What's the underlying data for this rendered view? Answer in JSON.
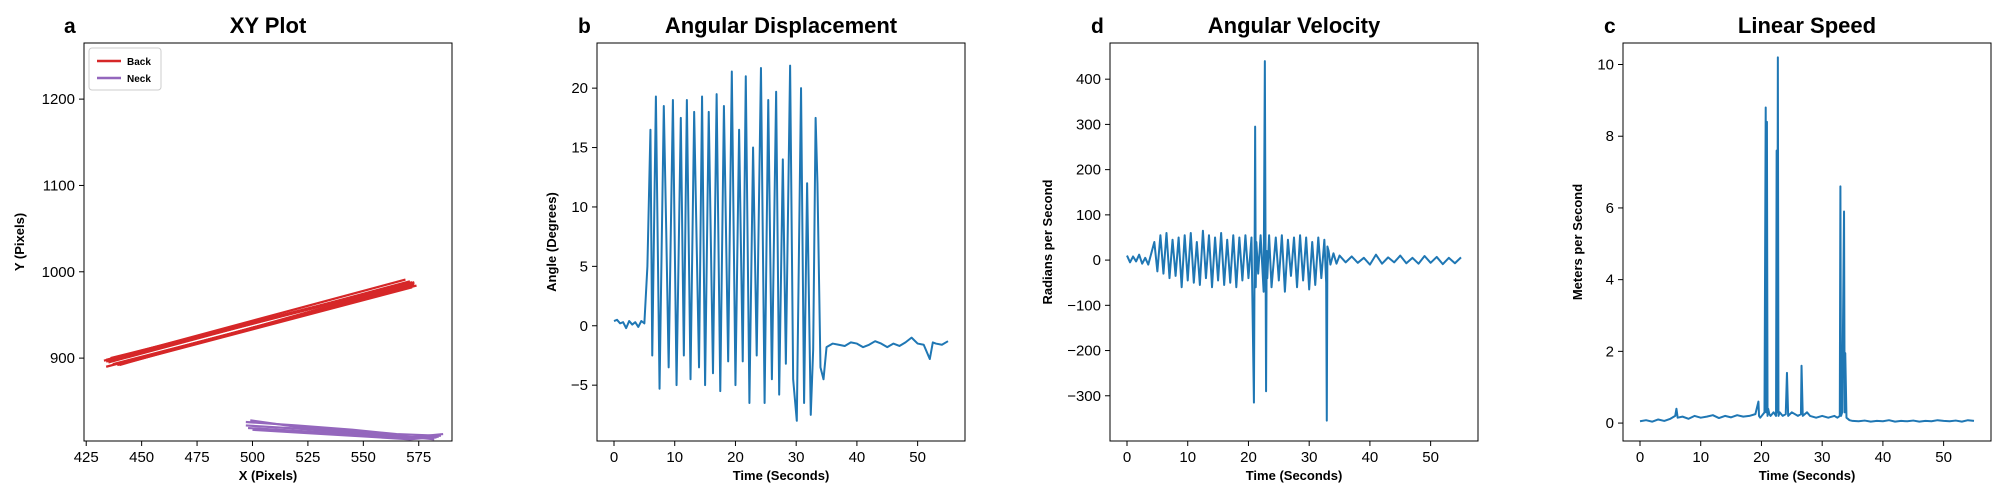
{
  "colors": {
    "blue": "#1f77b4",
    "red": "#d62728",
    "purple": "#9467bd",
    "axis": "#000000",
    "legend_border": "#cccccc"
  },
  "chart_data": [
    {
      "type": "line",
      "letter": "a",
      "title": "XY Plot",
      "xlabel": "X (Pixels)",
      "ylabel": "Y (Pixels)",
      "xlim": [
        424,
        590
      ],
      "ylim": [
        804,
        1265
      ],
      "xticks": [
        425,
        450,
        475,
        500,
        525,
        550,
        575
      ],
      "yticks": [
        900,
        1000,
        1100,
        1200
      ],
      "legend_position": "top-left",
      "series": [
        {
          "name": "Back",
          "color": "#d62728",
          "lines": [
            {
              "x": [
                434,
                573
              ],
              "y": [
                898,
                987
              ]
            },
            {
              "x": [
                434,
                573
              ],
              "y": [
                890,
                985
              ]
            },
            {
              "x": [
                435,
                571
              ],
              "y": [
                895,
                989
              ]
            },
            {
              "x": [
                438,
                570
              ],
              "y": [
                893,
                983
              ]
            },
            {
              "x": [
                436,
                572
              ],
              "y": [
                900,
                988
              ]
            },
            {
              "x": [
                437,
                574
              ],
              "y": [
                893,
                984
              ]
            },
            {
              "x": [
                433,
                569
              ],
              "y": [
                897,
                991
              ]
            },
            {
              "x": [
                439,
                572
              ],
              "y": [
                892,
                982
              ]
            },
            {
              "x": [
                434,
                570
              ],
              "y": [
                896,
                986
              ]
            },
            {
              "x": [
                440,
                573
              ],
              "y": [
                892,
                988
              ]
            }
          ]
        },
        {
          "name": "Neck",
          "color": "#9467bd",
          "lines": [
            {
              "x": [
                497,
                520,
                545,
                565,
                585
              ],
              "y": [
                826,
                822,
                817,
                812,
                810
              ]
            },
            {
              "x": [
                497,
                522,
                548,
                567,
                583
              ],
              "y": [
                822,
                818,
                813,
                809,
                808
              ]
            },
            {
              "x": [
                498,
                525,
                550,
                570,
                586
              ],
              "y": [
                819,
                815,
                811,
                808,
                812
              ]
            },
            {
              "x": [
                499,
                521,
                546,
                566,
                582
              ],
              "y": [
                828,
                820,
                815,
                810,
                806
              ]
            },
            {
              "x": [
                500,
                526,
                552,
                571,
                584
              ],
              "y": [
                817,
                813,
                809,
                806,
                809
              ]
            }
          ]
        }
      ]
    },
    {
      "type": "line",
      "letter": "b",
      "title": "Angular Displacement",
      "xlabel": "Time (Seconds)",
      "ylabel": "Angle (Degrees)",
      "xlim": [
        -2.8,
        57.8
      ],
      "ylim": [
        -9.7,
        23.8
      ],
      "xticks": [
        0,
        10,
        20,
        30,
        40,
        50
      ],
      "yticks": [
        -5,
        0,
        5,
        10,
        15,
        20
      ],
      "series": [
        {
          "color": "#1f77b4",
          "x": [
            0,
            0.5,
            1,
            1.5,
            2,
            2.5,
            3,
            3.5,
            4,
            4.5,
            5,
            5.5,
            6,
            6.3,
            6.9,
            7.5,
            8.2,
            8.6,
            9.0,
            9.7,
            10.3,
            11.0,
            11.5,
            12.0,
            12.6,
            13.2,
            14.0,
            14.5,
            15.0,
            15.6,
            16.3,
            16.9,
            17.5,
            18.1,
            18.8,
            19.4,
            20.0,
            20.6,
            21.2,
            21.7,
            22.3,
            22.9,
            23.5,
            24.2,
            24.8,
            25.4,
            26.0,
            26.7,
            27.2,
            27.8,
            28.3,
            29.0,
            29.5,
            30.1,
            30.8,
            31.3,
            31.8,
            32.4,
            32.8,
            33.2,
            33.5,
            34.0,
            34.5,
            35.0,
            36,
            37,
            38,
            39,
            40,
            41,
            42,
            43,
            44,
            45,
            46,
            47,
            48,
            49,
            50,
            51,
            52,
            52.5,
            53,
            54,
            55
          ],
          "y": [
            0.4,
            0.5,
            0.2,
            0.3,
            -0.2,
            0.4,
            0.1,
            0.3,
            -0.1,
            0.4,
            0.2,
            5.0,
            16.5,
            -2.5,
            19.3,
            -5.3,
            18.5,
            8.0,
            -3.5,
            19.0,
            -5.0,
            17.5,
            -2.5,
            19.0,
            -4.5,
            18.0,
            -3.5,
            19.3,
            -5.0,
            18.0,
            -4.0,
            19.5,
            -5.5,
            18.5,
            -3.0,
            21.4,
            -5.0,
            16.5,
            -3.0,
            21.0,
            -6.5,
            15.0,
            -2.5,
            21.7,
            -6.5,
            19.0,
            -4.5,
            19.7,
            -5.8,
            14.0,
            -3.2,
            21.9,
            -4.5,
            -8.0,
            20.0,
            -6.5,
            12.0,
            -7.5,
            -2.0,
            17.5,
            12.0,
            -3.5,
            -4.5,
            -1.8,
            -1.5,
            -1.6,
            -1.7,
            -1.4,
            -1.5,
            -1.8,
            -1.6,
            -1.3,
            -1.5,
            -1.8,
            -1.5,
            -1.7,
            -1.4,
            -1.0,
            -1.5,
            -1.6,
            -2.8,
            -1.4,
            -1.5,
            -1.6,
            -1.3
          ]
        }
      ]
    },
    {
      "type": "line",
      "letter": "d",
      "title": "Angular Velocity",
      "xlabel": "Time (Seconds)",
      "ylabel": "Radians per Second",
      "xlim": [
        -2.8,
        57.8
      ],
      "ylim": [
        -400,
        480
      ],
      "xticks": [
        0,
        10,
        20,
        30,
        40,
        50
      ],
      "yticks": [
        -300,
        -200,
        -100,
        0,
        100,
        200,
        300,
        400
      ],
      "series": [
        {
          "color": "#1f77b4",
          "x": [
            0,
            0.5,
            1,
            1.5,
            2,
            2.5,
            3,
            3.5,
            4,
            4.5,
            5,
            5.5,
            6,
            6.5,
            7,
            7.5,
            8,
            8.5,
            9,
            9.5,
            10,
            10.5,
            11,
            11.5,
            12,
            12.5,
            13,
            13.5,
            14,
            14.5,
            15,
            15.5,
            16,
            16.5,
            17,
            17.5,
            18,
            18.5,
            19,
            19.5,
            20,
            20.5,
            20.9,
            21.0,
            21.1,
            21.2,
            21.3,
            21.6,
            22,
            22.5,
            22.7,
            22.9,
            23.0,
            23.1,
            23.4,
            23.8,
            24.5,
            25,
            25.5,
            26,
            26.5,
            27,
            27.5,
            28,
            28.5,
            29,
            29.5,
            30,
            30.5,
            31,
            31.5,
            32,
            32.5,
            32.8,
            32.9,
            33.0,
            33.2,
            33.5,
            34,
            34.5,
            35,
            36,
            37,
            38,
            39,
            40,
            41,
            42,
            43,
            44,
            45,
            46,
            47,
            48,
            49,
            50,
            51,
            52,
            53,
            54,
            55
          ],
          "y": [
            10,
            -5,
            8,
            -3,
            12,
            -8,
            5,
            -10,
            15,
            40,
            -25,
            55,
            -30,
            60,
            -40,
            45,
            -35,
            50,
            -60,
            55,
            -45,
            60,
            -50,
            40,
            -55,
            65,
            -40,
            55,
            -60,
            50,
            -45,
            60,
            -55,
            45,
            -50,
            55,
            -60,
            50,
            -45,
            55,
            -40,
            50,
            -315,
            -20,
            295,
            -60,
            40,
            -30,
            55,
            -70,
            440,
            -290,
            20,
            -40,
            55,
            -60,
            50,
            -45,
            55,
            -70,
            45,
            -35,
            50,
            -60,
            55,
            -45,
            50,
            -65,
            40,
            -55,
            50,
            -40,
            45,
            -50,
            -355,
            30,
            20,
            -10,
            15,
            -8,
            10,
            -5,
            8,
            -6,
            5,
            -10,
            12,
            -8,
            6,
            -5,
            10,
            -7,
            5,
            -8,
            9,
            -6,
            7,
            -9,
            5,
            -7,
            6
          ]
        }
      ]
    },
    {
      "type": "line",
      "letter": "c",
      "title": "Linear Speed",
      "xlabel": "Time (Seconds)",
      "ylabel": "Meters per Second",
      "xlim": [
        -2.8,
        57.8
      ],
      "ylim": [
        -0.5,
        10.6
      ],
      "xticks": [
        0,
        10,
        20,
        30,
        40,
        50
      ],
      "yticks": [
        0,
        2,
        4,
        6,
        8,
        10
      ],
      "series": [
        {
          "color": "#1f77b4",
          "x": [
            0,
            1,
            2,
            3,
            4,
            5,
            5.8,
            6.0,
            6.2,
            7,
            8,
            9,
            10,
            11,
            12,
            13,
            14,
            15,
            16,
            17,
            18,
            19,
            19.5,
            19.6,
            19.8,
            20.5,
            20.7,
            20.8,
            20.9,
            21.0,
            21.1,
            21.3,
            21.5,
            22,
            22.4,
            22.5,
            22.6,
            22.7,
            22.8,
            23.0,
            23.5,
            24.0,
            24.2,
            24.4,
            25,
            26,
            26.5,
            26.6,
            26.8,
            27.5,
            28,
            29,
            30,
            31,
            32,
            32.5,
            32.9,
            33.0,
            33.1,
            33.3,
            33.6,
            33.7,
            33.8,
            34.0,
            34.5,
            35,
            36,
            37,
            38,
            39,
            40,
            41,
            42,
            43,
            44,
            45,
            46,
            47,
            48,
            49,
            50,
            51,
            52,
            53,
            54,
            55
          ],
          "y": [
            0.05,
            0.08,
            0.04,
            0.1,
            0.06,
            0.12,
            0.2,
            0.4,
            0.15,
            0.18,
            0.12,
            0.2,
            0.15,
            0.18,
            0.22,
            0.14,
            0.2,
            0.16,
            0.22,
            0.18,
            0.2,
            0.25,
            0.6,
            0.2,
            0.15,
            0.3,
            8.8,
            0.3,
            8.4,
            0.2,
            0.4,
            0.25,
            0.2,
            0.3,
            0.2,
            7.6,
            0.3,
            10.2,
            0.2,
            0.3,
            0.2,
            0.25,
            1.4,
            0.2,
            0.3,
            0.2,
            0.25,
            1.6,
            0.2,
            0.3,
            0.2,
            0.15,
            0.2,
            0.15,
            0.2,
            0.15,
            0.2,
            6.6,
            0.2,
            0.3,
            5.9,
            0.3,
            1.95,
            0.15,
            0.08,
            0.06,
            0.05,
            0.07,
            0.04,
            0.06,
            0.05,
            0.08,
            0.04,
            0.06,
            0.05,
            0.07,
            0.04,
            0.06,
            0.05,
            0.08,
            0.06,
            0.05,
            0.07,
            0.04,
            0.08,
            0.06
          ]
        }
      ]
    }
  ]
}
